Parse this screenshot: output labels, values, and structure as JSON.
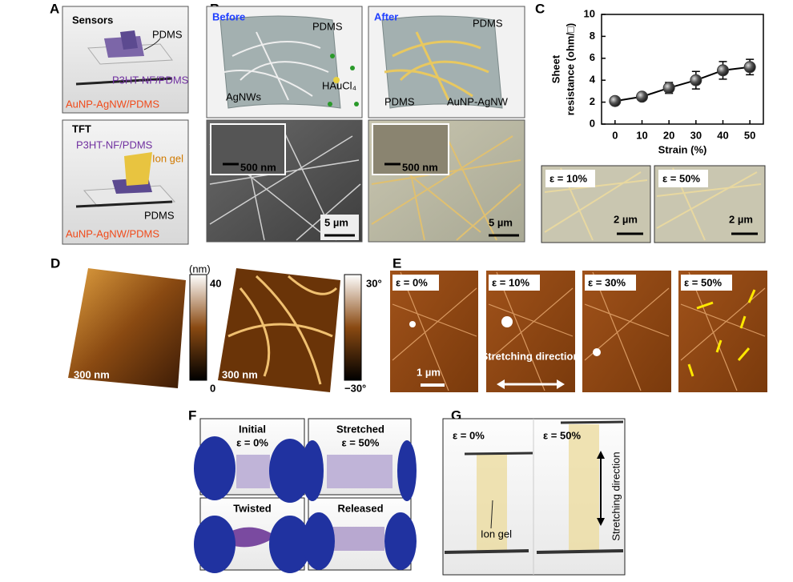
{
  "panels": {
    "A": {
      "label": "A",
      "sensors": {
        "title": "Sensors",
        "pdms": "PDMS",
        "p3ht": "P3HT-NF/PDMS",
        "aunp": "AuNP-AgNW/PDMS"
      },
      "tft": {
        "title": "TFT",
        "p3ht": "P3HT-NF/PDMS",
        "ion_gel": "Ion gel",
        "pdms": "PDMS",
        "aunp": "AuNP-AgNW/PDMS"
      }
    },
    "B": {
      "label": "B",
      "before": {
        "title": "Before",
        "pdms": "PDMS",
        "agnws": "AgNWs",
        "haucl4": "HAuCl₄",
        "inset_scale": "500 nm",
        "scale": "5 µm"
      },
      "after": {
        "title": "After",
        "pdms": "PDMS",
        "aunp_agnw": "AuNP-AgNW",
        "inset_scale": "500 nm",
        "scale": "5 µm"
      }
    },
    "C": {
      "label": "C",
      "images": [
        {
          "strain": "ε = 10%",
          "scale": "2 µm"
        },
        {
          "strain": "ε = 50%",
          "scale": "2 µm"
        }
      ]
    },
    "D": {
      "label": "D",
      "height": {
        "unit": "(nm)",
        "max": "40",
        "min": "0",
        "scale": "300 nm"
      },
      "phase": {
        "max": "30°",
        "min": "−30°",
        "scale": "300 nm"
      }
    },
    "E": {
      "label": "E",
      "images": [
        "ε = 0%",
        "ε = 10%",
        "ε = 30%",
        "ε = 50%"
      ],
      "scale": "1 µm",
      "direction": "Stretching direction"
    },
    "F": {
      "label": "F",
      "photos": [
        {
          "state": "Initial",
          "strain": "ε = 0%"
        },
        {
          "state": "Stretched",
          "strain": "ε = 50%"
        },
        {
          "state": "Twisted"
        },
        {
          "state": "Released"
        }
      ]
    },
    "G": {
      "label": "G",
      "photos": [
        "ε = 0%",
        "ε = 50%"
      ],
      "ion_gel": "Ion gel",
      "direction": "Stretching direction"
    }
  },
  "chart_data": {
    "type": "line",
    "xlabel": "Strain (%)",
    "ylabel": [
      "Sheet",
      "resistance (ohm/□)"
    ],
    "x": [
      0,
      10,
      20,
      30,
      40,
      50
    ],
    "values": [
      2.1,
      2.5,
      3.3,
      4.0,
      4.9,
      5.2
    ],
    "errors": [
      0.3,
      0.2,
      0.5,
      0.8,
      0.8,
      0.7
    ],
    "color": "#3a3a3a",
    "xlim": [
      -5,
      55
    ],
    "ylim": [
      0,
      10
    ],
    "xticks": [
      0,
      10,
      20,
      30,
      40,
      50
    ],
    "yticks": [
      0,
      2,
      4,
      6,
      8,
      10
    ]
  }
}
